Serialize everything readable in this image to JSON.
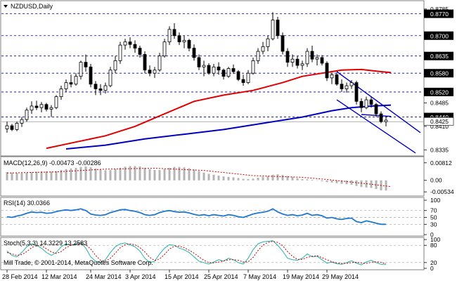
{
  "header": {
    "symbol": "NZDUSD,Daily",
    "copyright": "Mill Trade, © 2001-2014, MetaQuotes Software Corp."
  },
  "colors": {
    "bull": "#ffffff",
    "bear": "#000000",
    "ma_fast": "#e00000",
    "ma_slow": "#0000c0",
    "channel": "#0000c0",
    "level_box": "#000000",
    "macd_hist": "#b4b4b4",
    "macd_signal": "#c00000",
    "rsi": "#1e78d2",
    "stoch_main": "#20b2aa",
    "stoch_signal": "#c00000"
  },
  "chart_data": [
    {
      "type": "candlestick",
      "name": "price",
      "ylim": [
        0.832,
        0.8805
      ],
      "price_axis_ticks": [
        "0.8785",
        "0.8700",
        "0.8635",
        "0.8580",
        "0.8520",
        "0.8485",
        "0.8440",
        "0.8425",
        "0.8410",
        "0.8335"
      ],
      "dashed_levels": [
        0.877,
        0.87,
        0.8635,
        0.858,
        0.852,
        0.844
      ],
      "level_labels": [
        "0.8770",
        "0.8700",
        "0.8635",
        "0.8580",
        "0.8520",
        "0.8440"
      ],
      "current_price": 0.8425,
      "current_price_label": "0.8425",
      "dates": [
        "28 Feb 2014",
        "12 Mar 2014",
        "24 Mar 2014",
        "3 Apr 2014",
        "15 Apr 2014",
        "25 Apr 2014",
        "7 May 2014",
        "19 May 2014",
        "29 May 2014"
      ],
      "candles": [
        [
          0.8402,
          0.8425,
          0.839,
          0.8412
        ],
        [
          0.8412,
          0.8418,
          0.8395,
          0.84
        ],
        [
          0.84,
          0.8425,
          0.8395,
          0.842
        ],
        [
          0.842,
          0.844,
          0.8408,
          0.8432
        ],
        [
          0.8432,
          0.847,
          0.8425,
          0.8462
        ],
        [
          0.8462,
          0.849,
          0.845,
          0.8475
        ],
        [
          0.8475,
          0.8492,
          0.8462,
          0.847
        ],
        [
          0.847,
          0.8488,
          0.8455,
          0.848
        ],
        [
          0.848,
          0.8485,
          0.8458,
          0.8465
        ],
        [
          0.8465,
          0.8478,
          0.844,
          0.847
        ],
        [
          0.847,
          0.851,
          0.8465,
          0.8505
        ],
        [
          0.8505,
          0.854,
          0.8495,
          0.853
        ],
        [
          0.853,
          0.856,
          0.852,
          0.855
        ],
        [
          0.855,
          0.8575,
          0.8535,
          0.8545
        ],
        [
          0.8545,
          0.858,
          0.854,
          0.857
        ],
        [
          0.857,
          0.862,
          0.856,
          0.8615
        ],
        [
          0.8615,
          0.864,
          0.8585,
          0.86
        ],
        [
          0.86,
          0.861,
          0.8535,
          0.8545
        ],
        [
          0.8545,
          0.8555,
          0.851,
          0.853
        ],
        [
          0.853,
          0.8545,
          0.851,
          0.8525
        ],
        [
          0.8525,
          0.855,
          0.8515,
          0.854
        ],
        [
          0.854,
          0.86,
          0.8535,
          0.859
        ],
        [
          0.859,
          0.8635,
          0.858,
          0.862
        ],
        [
          0.862,
          0.868,
          0.861,
          0.867
        ],
        [
          0.867,
          0.869,
          0.8655,
          0.868
        ],
        [
          0.868,
          0.8695,
          0.866,
          0.8672
        ],
        [
          0.8672,
          0.8685,
          0.8645,
          0.866
        ],
        [
          0.866,
          0.8668,
          0.863,
          0.864
        ],
        [
          0.864,
          0.865,
          0.858,
          0.859
        ],
        [
          0.859,
          0.8605,
          0.857,
          0.858
        ],
        [
          0.858,
          0.86,
          0.8565,
          0.859
        ],
        [
          0.859,
          0.8645,
          0.8585,
          0.8635
        ],
        [
          0.8635,
          0.869,
          0.863,
          0.868
        ],
        [
          0.868,
          0.873,
          0.867,
          0.872
        ],
        [
          0.872,
          0.874,
          0.869,
          0.87
        ],
        [
          0.87,
          0.871,
          0.867,
          0.868
        ],
        [
          0.868,
          0.87,
          0.866,
          0.8685
        ],
        [
          0.8685,
          0.869,
          0.865,
          0.866
        ],
        [
          0.866,
          0.8672,
          0.862,
          0.863
        ],
        [
          0.863,
          0.864,
          0.859,
          0.86
        ],
        [
          0.86,
          0.862,
          0.857,
          0.8605
        ],
        [
          0.8605,
          0.8612,
          0.8575,
          0.858
        ],
        [
          0.858,
          0.861,
          0.857,
          0.86
        ],
        [
          0.86,
          0.8615,
          0.8575,
          0.859
        ],
        [
          0.859,
          0.8595,
          0.856,
          0.857
        ],
        [
          0.857,
          0.86,
          0.8565,
          0.8595
        ],
        [
          0.8595,
          0.8608,
          0.8578,
          0.8585
        ],
        [
          0.8585,
          0.859,
          0.8555,
          0.856
        ],
        [
          0.856,
          0.8575,
          0.854,
          0.855
        ],
        [
          0.855,
          0.859,
          0.8545,
          0.858
        ],
        [
          0.858,
          0.863,
          0.8575,
          0.862
        ],
        [
          0.862,
          0.866,
          0.861,
          0.865
        ],
        [
          0.865,
          0.868,
          0.864,
          0.8665
        ],
        [
          0.8665,
          0.87,
          0.865,
          0.869
        ],
        [
          0.869,
          0.8775,
          0.8685,
          0.875
        ],
        [
          0.875,
          0.876,
          0.869,
          0.87
        ],
        [
          0.87,
          0.871,
          0.864,
          0.865
        ],
        [
          0.865,
          0.866,
          0.86,
          0.8615
        ],
        [
          0.8615,
          0.864,
          0.86,
          0.8625
        ],
        [
          0.8625,
          0.8635,
          0.8595,
          0.8605
        ],
        [
          0.8605,
          0.862,
          0.859,
          0.861
        ],
        [
          0.861,
          0.866,
          0.86,
          0.865
        ],
        [
          0.865,
          0.8668,
          0.8615,
          0.8625
        ],
        [
          0.8625,
          0.864,
          0.8605,
          0.863
        ],
        [
          0.863,
          0.8638,
          0.8605,
          0.8612
        ],
        [
          0.8612,
          0.8618,
          0.8555,
          0.8565
        ],
        [
          0.8565,
          0.858,
          0.8545,
          0.8575
        ],
        [
          0.8575,
          0.8582,
          0.854,
          0.8545
        ],
        [
          0.8545,
          0.856,
          0.852,
          0.853
        ],
        [
          0.853,
          0.855,
          0.8518,
          0.854
        ],
        [
          0.854,
          0.8558,
          0.853,
          0.855
        ],
        [
          0.855,
          0.8556,
          0.848,
          0.849
        ],
        [
          0.849,
          0.85,
          0.8455,
          0.847
        ],
        [
          0.847,
          0.8505,
          0.8465,
          0.8495
        ],
        [
          0.8495,
          0.8505,
          0.847,
          0.848
        ],
        [
          0.848,
          0.8485,
          0.844,
          0.845
        ],
        [
          0.845,
          0.8458,
          0.842,
          0.8425
        ],
        [
          0.8425,
          0.844,
          0.841,
          0.843
        ]
      ],
      "ma_fast": [
        [
          8,
          0.834
        ],
        [
          14,
          0.836
        ],
        [
          20,
          0.838
        ],
        [
          26,
          0.841
        ],
        [
          32,
          0.845
        ],
        [
          38,
          0.849
        ],
        [
          44,
          0.851
        ],
        [
          50,
          0.8525
        ],
        [
          56,
          0.855
        ],
        [
          60,
          0.857
        ],
        [
          64,
          0.858
        ],
        [
          68,
          0.859
        ],
        [
          72,
          0.8592
        ],
        [
          76,
          0.8585
        ],
        [
          78,
          0.8582
        ]
      ],
      "ma_slow": [
        [
          12,
          0.8338
        ],
        [
          20,
          0.835
        ],
        [
          28,
          0.837
        ],
        [
          36,
          0.8385
        ],
        [
          44,
          0.84
        ],
        [
          52,
          0.842
        ],
        [
          60,
          0.844
        ],
        [
          66,
          0.846
        ],
        [
          70,
          0.847
        ],
        [
          74,
          0.8475
        ],
        [
          78,
          0.8478
        ]
      ],
      "channel_upper": [
        [
          67,
          0.8585
        ],
        [
          84,
          0.839
        ]
      ],
      "channel_lower": [
        [
          67,
          0.8495
        ],
        [
          83,
          0.8325
        ]
      ],
      "channel_mid": [
        [
          72,
          0.8448
        ],
        [
          78,
          0.8442
        ]
      ]
    },
    {
      "type": "bar",
      "name": "macd",
      "title": "MACD(12,26,9) -0.00473 -0.00286",
      "ylim": [
        -0.0066,
        0.01
      ],
      "axis_ticks": [
        "0.00812",
        "0.00",
        "-0.00534"
      ],
      "histogram": [
        0.0038,
        0.0036,
        0.0034,
        0.0033,
        0.0035,
        0.0038,
        0.004,
        0.0042,
        0.0042,
        0.0041,
        0.0043,
        0.0048,
        0.0052,
        0.0055,
        0.0058,
        0.0062,
        0.0064,
        0.006,
        0.0055,
        0.005,
        0.0047,
        0.0048,
        0.0052,
        0.0058,
        0.0063,
        0.0066,
        0.0066,
        0.0064,
        0.0058,
        0.0052,
        0.0048,
        0.0048,
        0.0052,
        0.0058,
        0.0062,
        0.0062,
        0.006,
        0.0056,
        0.005,
        0.0043,
        0.0036,
        0.003,
        0.0026,
        0.0022,
        0.0018,
        0.0016,
        0.0014,
        0.0011,
        0.0007,
        0.0006,
        0.0008,
        0.0012,
        0.0016,
        0.002,
        0.0026,
        0.0028,
        0.0025,
        0.002,
        0.0015,
        0.001,
        0.0006,
        0.0005,
        0.0003,
        0.0,
        -0.0004,
        -0.0008,
        -0.001,
        -0.0013,
        -0.0016,
        -0.0018,
        -0.002,
        -0.0026,
        -0.0031,
        -0.0033,
        -0.0035,
        -0.004,
        -0.0046,
        -0.0047
      ],
      "signal": [
        [
          0,
          0.0034
        ],
        [
          10,
          0.0039
        ],
        [
          20,
          0.0052
        ],
        [
          30,
          0.0056
        ],
        [
          40,
          0.0046
        ],
        [
          50,
          0.0022
        ],
        [
          60,
          0.0014
        ],
        [
          65,
          0.0004
        ],
        [
          70,
          -0.0008
        ],
        [
          74,
          -0.0018
        ],
        [
          78,
          -0.0029
        ]
      ]
    },
    {
      "type": "line",
      "name": "rsi",
      "title": "RSI(14) 30.0366",
      "ylim": [
        0,
        100
      ],
      "axis_ticks": [
        "100",
        "70",
        "50",
        "30",
        "0"
      ],
      "levels": [
        70,
        50,
        30
      ],
      "values": [
        52,
        50,
        54,
        57,
        62,
        66,
        64,
        65,
        62,
        63,
        67,
        70,
        72,
        70,
        72,
        75,
        70,
        60,
        57,
        56,
        58,
        64,
        68,
        72,
        73,
        70,
        68,
        64,
        58,
        56,
        58,
        64,
        68,
        70,
        67,
        65,
        66,
        63,
        59,
        56,
        58,
        55,
        58,
        56,
        54,
        58,
        56,
        52,
        50,
        55,
        60,
        63,
        65,
        68,
        75,
        66,
        60,
        56,
        58,
        55,
        57,
        62,
        56,
        58,
        55,
        48,
        50,
        46,
        44,
        47,
        48,
        38,
        35,
        40,
        37,
        33,
        30,
        30
      ]
    },
    {
      "type": "line",
      "name": "stochastic",
      "title": "Stoch(5,3,3) 14.3229 13.2583",
      "ylim": [
        0,
        100
      ],
      "axis_ticks": [
        "100",
        "80",
        "20",
        "0"
      ],
      "levels": [
        80,
        20
      ],
      "main": [
        60,
        45,
        40,
        55,
        75,
        85,
        80,
        70,
        55,
        45,
        55,
        75,
        85,
        80,
        85,
        90,
        70,
        40,
        25,
        20,
        30,
        55,
        75,
        85,
        88,
        82,
        75,
        60,
        35,
        20,
        25,
        50,
        70,
        82,
        80,
        70,
        65,
        55,
        40,
        25,
        20,
        15,
        22,
        30,
        25,
        35,
        30,
        20,
        15,
        35,
        65,
        85,
        92,
        94,
        96,
        80,
        60,
        35,
        30,
        28,
        35,
        50,
        40,
        42,
        30,
        18,
        22,
        16,
        14,
        20,
        26,
        18,
        12,
        22,
        28,
        20,
        14,
        14
      ],
      "signal": [
        55,
        50,
        45,
        48,
        58,
        72,
        80,
        78,
        68,
        57,
        52,
        58,
        72,
        80,
        83,
        85,
        82,
        67,
        45,
        28,
        25,
        35,
        53,
        72,
        82,
        85,
        82,
        72,
        57,
        38,
        27,
        33,
        48,
        67,
        77,
        77,
        72,
        63,
        53,
        40,
        28,
        20,
        19,
        22,
        26,
        30,
        30,
        28,
        22,
        23,
        38,
        62,
        81,
        90,
        94,
        90,
        79,
        58,
        42,
        31,
        31,
        38,
        42,
        44,
        37,
        30,
        23,
        19,
        17,
        17,
        20,
        21,
        19,
        17,
        21,
        23,
        21,
        16
      ]
    }
  ]
}
